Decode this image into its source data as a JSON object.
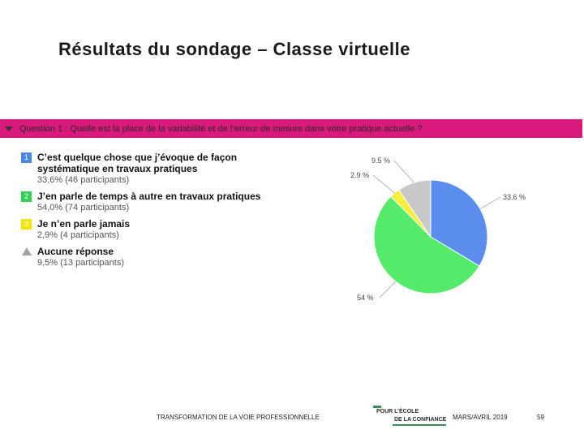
{
  "slide": {
    "title": "Résultats du sondage – Classe virtuelle"
  },
  "question": {
    "text": "Question 1 : Quelle est la place de la variabilité et de l’erreur de mesure dans votre pratique actuelle ?",
    "bar_color": "#d9197b"
  },
  "legend": [
    {
      "badge": "1",
      "label": "C’est quelque chose que j’évoque de façon\nsystématique en travaux pratiques",
      "stat": "33,6% (46 participants)",
      "color": "#4a86e8"
    },
    {
      "badge": "2",
      "label": "J’en parle de temps à autre en travaux pratiques",
      "stat": "54,0% (74 participants)",
      "color": "#34d058"
    },
    {
      "badge": "3",
      "label": "Je n’en parle jamais",
      "stat": "2,9% (4 participants)",
      "color": "#f2e500"
    },
    {
      "badge": "",
      "icon": "triangle-icon",
      "label": "Aucune réponse",
      "stat": "9,5% (13 participants)",
      "color": "#a0a0a0"
    }
  ],
  "chart_data": {
    "type": "pie",
    "slices": [
      {
        "name": "C’est quelque chose que j’évoque de façon systématique en travaux pratiques",
        "value": 33.6,
        "label": "33.6 %",
        "color": "#5b8def"
      },
      {
        "name": "J’en parle de temps à autre en travaux pratiques",
        "value": 54.0,
        "label": "54 %",
        "color": "#55ea6a"
      },
      {
        "name": "Je n’en parle jamais",
        "value": 2.9,
        "label": "2.9 %",
        "color": "#f7ee3a"
      },
      {
        "name": "Aucune réponse",
        "value": 9.5,
        "label": "9.5 %",
        "color": "#c8c8c8"
      }
    ]
  },
  "footer": {
    "program": "TRANSFORMATION DE LA VOIE PROFESSIONNELLE",
    "logo_line1": "POUR L’ÉCOLE",
    "logo_line2": "DE LA CONFIANCE",
    "date": "MARS/AVRIL 2019",
    "page": "59"
  }
}
